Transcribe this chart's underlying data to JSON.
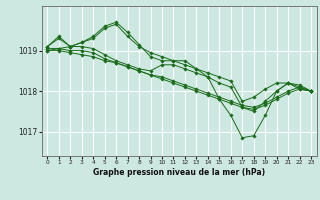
{
  "title": "Graphe pression niveau de la mer (hPa)",
  "background_color": "#cce8e0",
  "grid_color": "#ffffff",
  "line_color": "#1a6b1a",
  "marker_color": "#1a6b1a",
  "xlim": [
    -0.5,
    23.5
  ],
  "ylim": [
    1016.4,
    1020.1
  ],
  "yticks": [
    1017,
    1018,
    1019
  ],
  "xticks": [
    0,
    1,
    2,
    3,
    4,
    5,
    6,
    7,
    8,
    9,
    10,
    11,
    12,
    13,
    14,
    15,
    16,
    17,
    18,
    19,
    20,
    21,
    22,
    23
  ],
  "series": [
    [
      1019.1,
      1019.35,
      1019.1,
      1019.2,
      1019.35,
      1019.6,
      1019.7,
      1019.45,
      1019.15,
      1018.85,
      1018.75,
      1018.75,
      1018.75,
      1018.55,
      1018.35,
      1017.8,
      1017.4,
      1016.85,
      1016.9,
      1017.4,
      1018.0,
      1018.2,
      1018.15,
      1018.0
    ],
    [
      1019.05,
      1019.05,
      1019.1,
      1019.1,
      1019.05,
      1018.9,
      1018.75,
      1018.65,
      1018.55,
      1018.5,
      1018.65,
      1018.65,
      1018.55,
      1018.45,
      1018.35,
      1018.2,
      1018.1,
      1017.6,
      1017.5,
      1017.75,
      1018.0,
      1018.2,
      1018.1,
      1018.0
    ],
    [
      1019.0,
      1019.0,
      1018.95,
      1018.9,
      1018.85,
      1018.75,
      1018.7,
      1018.6,
      1018.5,
      1018.4,
      1018.35,
      1018.25,
      1018.15,
      1018.05,
      1017.95,
      1017.85,
      1017.75,
      1017.65,
      1017.6,
      1017.7,
      1017.85,
      1018.0,
      1018.1,
      1018.0
    ],
    [
      1019.0,
      1019.05,
      1019.0,
      1019.0,
      1018.95,
      1018.8,
      1018.7,
      1018.6,
      1018.5,
      1018.4,
      1018.3,
      1018.2,
      1018.1,
      1018.0,
      1017.9,
      1017.8,
      1017.7,
      1017.6,
      1017.55,
      1017.65,
      1017.8,
      1017.95,
      1018.05,
      1018.0
    ],
    [
      1019.1,
      1019.3,
      1019.1,
      1019.2,
      1019.3,
      1019.55,
      1019.65,
      1019.35,
      1019.1,
      1018.95,
      1018.85,
      1018.75,
      1018.65,
      1018.55,
      1018.45,
      1018.35,
      1018.25,
      1017.75,
      1017.85,
      1018.05,
      1018.2,
      1018.2,
      1018.05,
      1018.0
    ]
  ]
}
